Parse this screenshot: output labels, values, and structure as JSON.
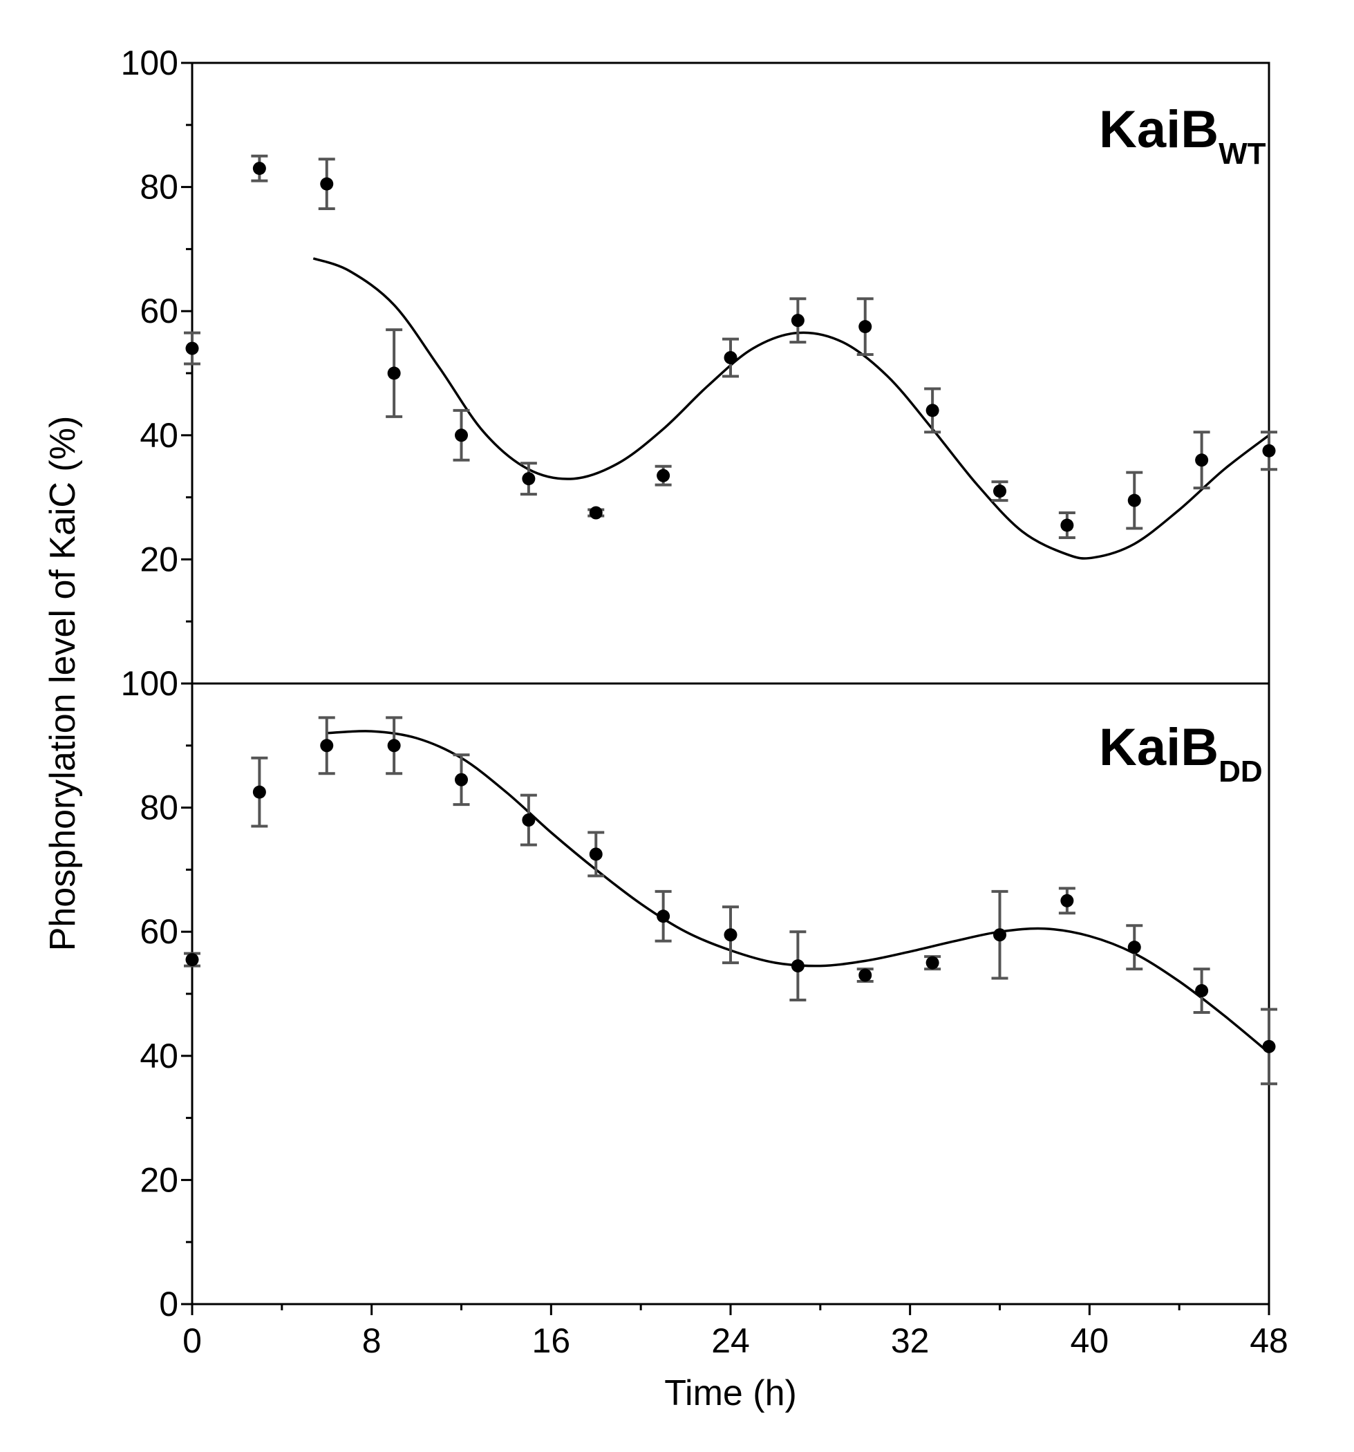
{
  "chart_data": {
    "type": "scatter",
    "xlabel": "Time (h)",
    "ylabel": "Phosphorylation level of KaiC (%)",
    "xlim": [
      0,
      48
    ],
    "xticks": [
      "0",
      "8",
      "16",
      "24",
      "32",
      "40",
      "48"
    ],
    "panels": [
      {
        "name": "KaiB_WT",
        "title_main": "KaiB",
        "title_sub": "WT",
        "ylim": [
          0,
          100
        ],
        "yticks": [
          "100",
          "80",
          "60",
          "40",
          "20"
        ],
        "points": [
          {
            "x": 0,
            "y": 54.0,
            "err": 2.5
          },
          {
            "x": 3,
            "y": 83.0,
            "err": 2.0
          },
          {
            "x": 6,
            "y": 80.5,
            "err": 4.0
          },
          {
            "x": 9,
            "y": 50.0,
            "err": 7.0
          },
          {
            "x": 12,
            "y": 40.0,
            "err": 4.0
          },
          {
            "x": 15,
            "y": 33.0,
            "err": 2.5
          },
          {
            "x": 18,
            "y": 27.5,
            "err": 0.5
          },
          {
            "x": 21,
            "y": 33.5,
            "err": 1.5
          },
          {
            "x": 24,
            "y": 52.5,
            "err": 3.0
          },
          {
            "x": 27,
            "y": 58.5,
            "err": 3.5
          },
          {
            "x": 30,
            "y": 57.5,
            "err": 4.5
          },
          {
            "x": 33,
            "y": 44.0,
            "err": 3.5
          },
          {
            "x": 36,
            "y": 31.0,
            "err": 1.5
          },
          {
            "x": 39,
            "y": 25.5,
            "err": 2.0
          },
          {
            "x": 42,
            "y": 29.5,
            "err": 4.5
          },
          {
            "x": 45,
            "y": 36.0,
            "err": 4.5
          },
          {
            "x": 48,
            "y": 37.5,
            "err": 3.0
          }
        ],
        "fit": [
          {
            "x": 5.4,
            "y": 68.5
          },
          {
            "x": 7,
            "y": 66.5
          },
          {
            "x": 9,
            "y": 61.0
          },
          {
            "x": 11,
            "y": 51.0
          },
          {
            "x": 13,
            "y": 40.5
          },
          {
            "x": 15,
            "y": 34.5
          },
          {
            "x": 17,
            "y": 33.0
          },
          {
            "x": 19,
            "y": 35.5
          },
          {
            "x": 21,
            "y": 41.0
          },
          {
            "x": 23,
            "y": 48.0
          },
          {
            "x": 25,
            "y": 54.0
          },
          {
            "x": 27,
            "y": 56.5
          },
          {
            "x": 29,
            "y": 55.0
          },
          {
            "x": 31,
            "y": 49.5
          },
          {
            "x": 33,
            "y": 41.0
          },
          {
            "x": 35,
            "y": 32.0
          },
          {
            "x": 37,
            "y": 24.5
          },
          {
            "x": 39,
            "y": 20.8
          },
          {
            "x": 40.2,
            "y": 20.3
          },
          {
            "x": 42,
            "y": 22.5
          },
          {
            "x": 44,
            "y": 28.0
          },
          {
            "x": 46,
            "y": 34.5
          },
          {
            "x": 48,
            "y": 40.0
          }
        ]
      },
      {
        "name": "KaiB_DD",
        "title_main": "KaiB",
        "title_sub": "DD",
        "ylim": [
          0,
          100
        ],
        "yticks": [
          "100",
          "80",
          "60",
          "40",
          "20",
          "0"
        ],
        "points": [
          {
            "x": 0,
            "y": 55.5,
            "err": 1.0
          },
          {
            "x": 3,
            "y": 82.5,
            "err": 5.5
          },
          {
            "x": 6,
            "y": 90.0,
            "err": 4.5
          },
          {
            "x": 9,
            "y": 90.0,
            "err": 4.5
          },
          {
            "x": 12,
            "y": 84.5,
            "err": 4.0
          },
          {
            "x": 15,
            "y": 78.0,
            "err": 4.0
          },
          {
            "x": 18,
            "y": 72.5,
            "err": 3.5
          },
          {
            "x": 21,
            "y": 62.5,
            "err": 4.0
          },
          {
            "x": 24,
            "y": 59.5,
            "err": 4.5
          },
          {
            "x": 27,
            "y": 54.5,
            "err": 5.5
          },
          {
            "x": 30,
            "y": 53.0,
            "err": 1.0
          },
          {
            "x": 33,
            "y": 55.0,
            "err": 1.0
          },
          {
            "x": 36,
            "y": 59.5,
            "err": 7.0
          },
          {
            "x": 39,
            "y": 65.0,
            "err": 2.0
          },
          {
            "x": 42,
            "y": 57.5,
            "err": 3.5
          },
          {
            "x": 45,
            "y": 50.5,
            "err": 3.5
          },
          {
            "x": 48,
            "y": 41.5,
            "err": 6.0
          }
        ],
        "fit": [
          {
            "x": 6,
            "y": 92.0
          },
          {
            "x": 8,
            "y": 92.3
          },
          {
            "x": 10,
            "y": 91.2
          },
          {
            "x": 12,
            "y": 88.0
          },
          {
            "x": 14,
            "y": 82.5
          },
          {
            "x": 16,
            "y": 76.0
          },
          {
            "x": 18,
            "y": 70.0
          },
          {
            "x": 20,
            "y": 64.5
          },
          {
            "x": 22,
            "y": 60.0
          },
          {
            "x": 24,
            "y": 57.0
          },
          {
            "x": 26,
            "y": 55.0
          },
          {
            "x": 28,
            "y": 54.5
          },
          {
            "x": 30,
            "y": 55.3
          },
          {
            "x": 32,
            "y": 56.8
          },
          {
            "x": 34,
            "y": 58.5
          },
          {
            "x": 36,
            "y": 60.0
          },
          {
            "x": 38,
            "y": 60.5
          },
          {
            "x": 40,
            "y": 59.3
          },
          {
            "x": 42,
            "y": 56.5
          },
          {
            "x": 44,
            "y": 52.0
          },
          {
            "x": 46,
            "y": 46.5
          },
          {
            "x": 48,
            "y": 40.5
          }
        ]
      }
    ]
  }
}
